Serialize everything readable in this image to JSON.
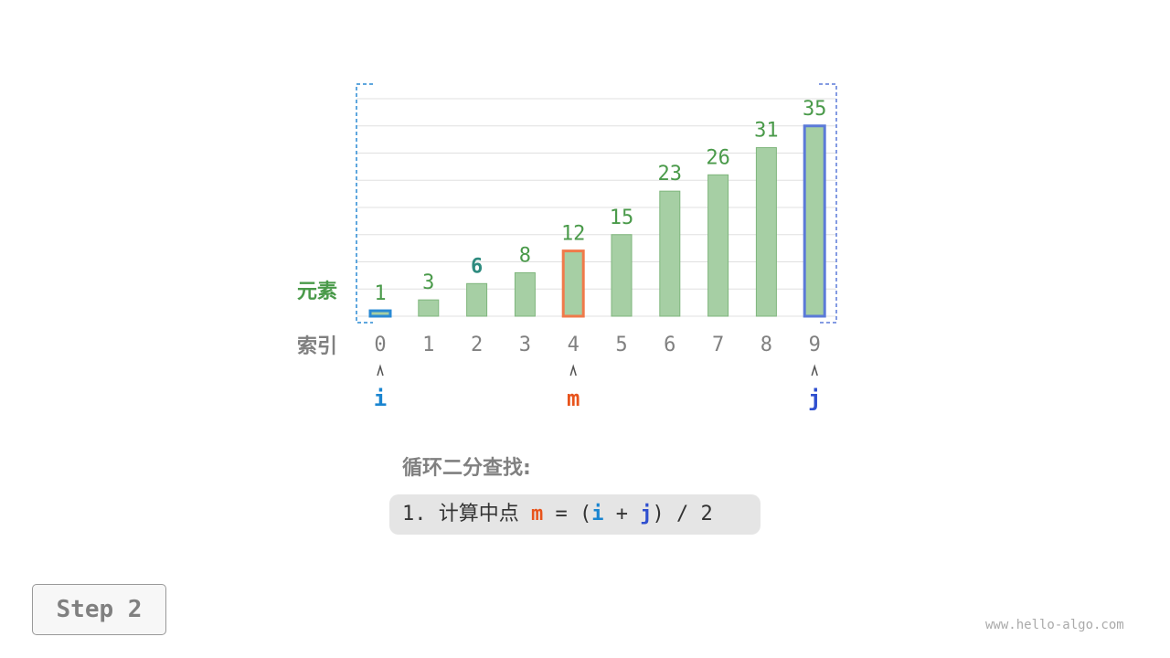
{
  "chart_data": {
    "type": "bar",
    "categories": [
      "0",
      "1",
      "2",
      "3",
      "4",
      "5",
      "6",
      "7",
      "8",
      "9"
    ],
    "values": [
      1,
      3,
      6,
      8,
      12,
      15,
      23,
      26,
      31,
      35
    ],
    "ylim": [
      0,
      40
    ],
    "grid": true,
    "row_labels": {
      "elements": "元素",
      "index": "索引"
    },
    "highlights": {
      "i": 0,
      "m": 4,
      "j": 9
    },
    "colors": {
      "bar": "#a6cfa4",
      "bar_stroke": "#7fb67c",
      "value_text": "#4a9a4a",
      "highlight_value": "#2e8b7f",
      "i": "#2a8ad4",
      "m": "#f07a4a",
      "j": "#5b7ad8",
      "index_text": "#808080"
    }
  },
  "pointers": {
    "i": "i",
    "m": "m",
    "j": "j"
  },
  "title": "循环二分查找:",
  "formula": {
    "prefix": "1. 计算中点 ",
    "m": "m",
    "eq": " = (",
    "i": "i",
    "plus": " + ",
    "j": "j",
    "suffix": ") / 2"
  },
  "step": "Step 2",
  "watermark": "www.hello-algo.com"
}
